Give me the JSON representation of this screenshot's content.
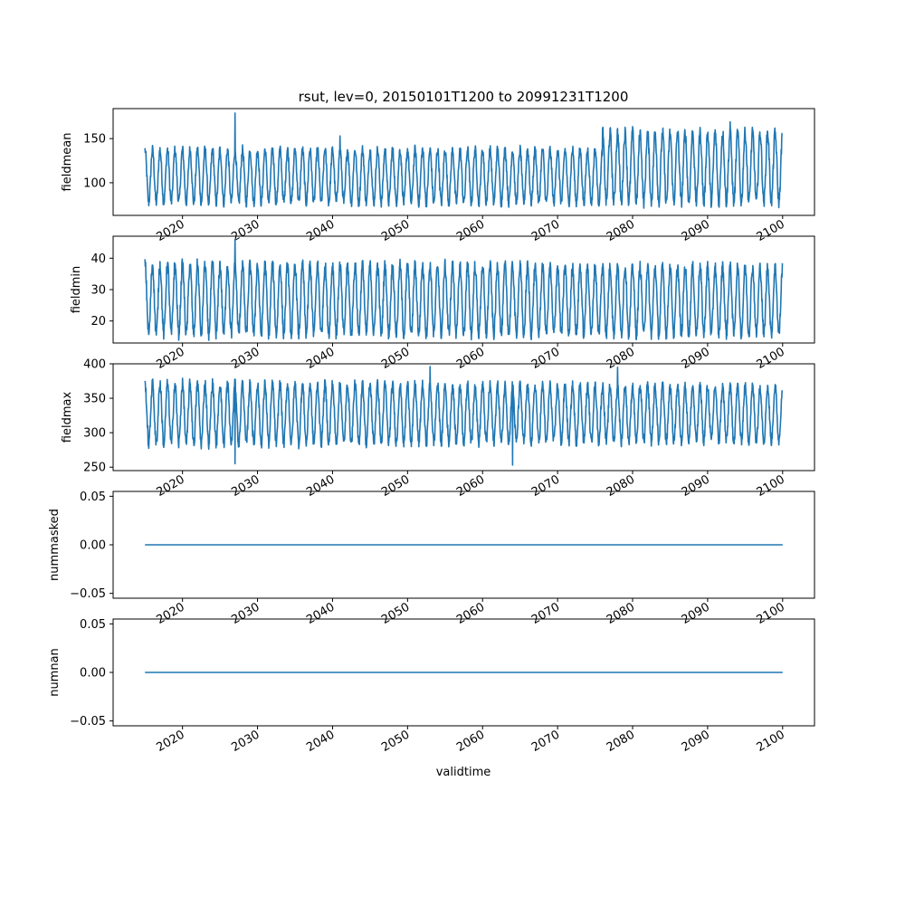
{
  "chart_data": {
    "type": "line",
    "title": "rsut, lev=0, 20150101T1200 to 20991231T1200",
    "xlabel": "validtime",
    "x_range": [
      "2015-01-01",
      "2099-12-31"
    ],
    "x_ticks": [
      "2020",
      "2030",
      "2040",
      "2050",
      "2060",
      "2070",
      "2080",
      "2090",
      "2100"
    ],
    "line_color": "#1f77b4",
    "panels": [
      {
        "ylabel": "fieldmean",
        "ylim": [
          63,
          184
        ],
        "yticks": [
          "100",
          "150"
        ],
        "yticks_values": [
          100,
          150
        ],
        "series": {
          "seasonal_cycles_per_year": 1,
          "low_envelope": [
            75,
            75
          ],
          "high_envelope_early": 140,
          "high_envelope_late": 160,
          "change_year": 2076,
          "notable_peaks": [
            {
              "x": "2027-01",
              "y": 179
            },
            {
              "x": "2041-01",
              "y": 153
            },
            {
              "x": "2093-01",
              "y": 169
            }
          ]
        }
      },
      {
        "ylabel": "fieldmin",
        "ylim": [
          13,
          47
        ],
        "yticks": [
          "20",
          "30",
          "40"
        ],
        "yticks_values": [
          20,
          30,
          40
        ],
        "series": {
          "seasonal_cycles_per_year": 1,
          "low_envelope": [
            15,
            15
          ],
          "high_envelope_early": 39,
          "high_envelope_late": 38,
          "notable_peaks": [
            {
              "x": "2027-01",
              "y": 46
            }
          ]
        }
      },
      {
        "ylabel": "fieldmax",
        "ylim": [
          245,
          400
        ],
        "yticks": [
          "250",
          "300",
          "350",
          "400"
        ],
        "yticks_values": [
          250,
          300,
          350,
          400
        ],
        "series": {
          "seasonal_cycles_per_year": 1,
          "low_envelope": [
            280,
            285
          ],
          "high_envelope_early": 375,
          "high_envelope_late": 370,
          "notable_peaks": [
            {
              "x": "2053-01",
              "y": 396
            },
            {
              "x": "2078-01",
              "y": 395
            }
          ],
          "notable_dips": [
            {
              "x": "2027-01",
              "y": 255
            },
            {
              "x": "2064-01",
              "y": 253
            }
          ]
        }
      },
      {
        "ylabel": "nummasked",
        "ylim": [
          -0.055,
          0.055
        ],
        "yticks": [
          "−0.05",
          "0.00",
          "0.05"
        ],
        "yticks_values": [
          -0.05,
          0.0,
          0.05
        ],
        "series": {
          "constant": 0.0
        }
      },
      {
        "ylabel": "numnan",
        "ylim": [
          -0.055,
          0.055
        ],
        "yticks": [
          "−0.05",
          "0.00",
          "0.05"
        ],
        "yticks_values": [
          -0.05,
          0.0,
          0.05
        ],
        "series": {
          "constant": 0.0
        }
      }
    ]
  }
}
